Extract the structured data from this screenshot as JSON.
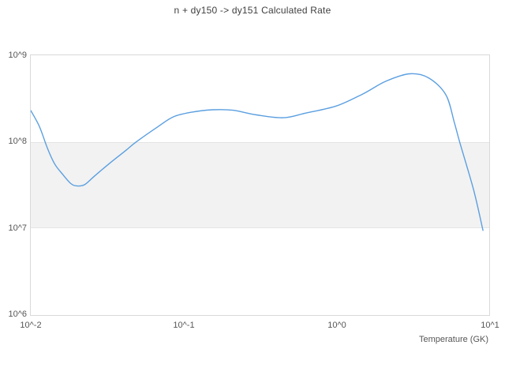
{
  "title": "n + dy150 -> dy151 Calculated Rate",
  "axes": {
    "x_label": "Temperature (GK)",
    "x_ticks": [
      "10^-2",
      "10^-1",
      "10^0",
      "10^1"
    ],
    "y_ticks": [
      "10^9",
      "10^8",
      "10^7",
      "10^6"
    ]
  },
  "colors": {
    "line": "#5b9fe0",
    "band_fill": "#f2f2f2",
    "band_edge": "#e4e4e4",
    "plot_border": "#d9d9d9",
    "title_text": "#3f3f3f",
    "tick_text": "#565656"
  },
  "chart_data": {
    "type": "line",
    "title": "n + dy150 -> dy151 Calculated Rate",
    "xlabel": "Temperature (GK)",
    "ylabel": "",
    "xscale": "log",
    "yscale": "log",
    "xlim": [
      0.01,
      10
    ],
    "ylim": [
      1000000.0,
      1000000000.0
    ],
    "grid": false,
    "legend": "none",
    "band": {
      "from": 10000000.0,
      "to": 100000000.0
    },
    "x_tick_labels": [
      "10^-2",
      "10^-1",
      "10^0",
      "10^1"
    ],
    "y_tick_labels": [
      "10^6",
      "10^7",
      "10^8",
      "10^9"
    ],
    "series": [
      {
        "name": "Calculated Rate",
        "color": "#5b9fe0",
        "x": [
          0.01,
          0.0114,
          0.0128,
          0.0143,
          0.0162,
          0.0183,
          0.02,
          0.0225,
          0.026,
          0.033,
          0.042,
          0.049,
          0.068,
          0.086,
          0.113,
          0.155,
          0.21,
          0.3,
          0.45,
          0.63,
          1.0,
          1.5,
          2.1,
          3.0,
          4.0,
          5.2,
          5.9,
          6.4,
          7.9,
          9.1
        ],
        "y": [
          230000000.0,
          150000000.0,
          86000000.0,
          56000000.0,
          42000000.0,
          33000000.0,
          31000000.0,
          32000000.0,
          40000000.0,
          57000000.0,
          80000000.0,
          100000000.0,
          150000000.0,
          195000000.0,
          220000000.0,
          235000000.0,
          232000000.0,
          205000000.0,
          190000000.0,
          215000000.0,
          260000000.0,
          360000000.0,
          500000000.0,
          610000000.0,
          550000000.0,
          350000000.0,
          170000000.0,
          100000000.0,
          28000000.0,
          9500000.0
        ]
      }
    ]
  }
}
